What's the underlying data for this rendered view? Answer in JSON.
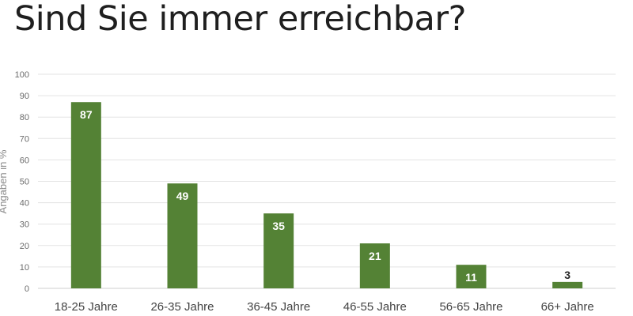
{
  "chart_data": {
    "type": "bar",
    "title": "Sind Sie immer erreichbar?",
    "ylabel": "Angaben in %",
    "xlabel": "",
    "categories": [
      "18-25 Jahre",
      "26-35 Jahre",
      "36-45 Jahre",
      "46-55 Jahre",
      "56-65 Jahre",
      "66+ Jahre"
    ],
    "values": [
      87,
      49,
      35,
      21,
      11,
      3
    ],
    "ylim": [
      0,
      100
    ],
    "yticks": [
      0,
      10,
      20,
      30,
      40,
      50,
      60,
      70,
      80,
      90,
      100
    ],
    "grid": true,
    "legend": "none",
    "colors": {
      "bar": "#548235",
      "grid": "#e3e3e3",
      "label_inside": "#ffffff",
      "label_outside": "#262626"
    }
  }
}
